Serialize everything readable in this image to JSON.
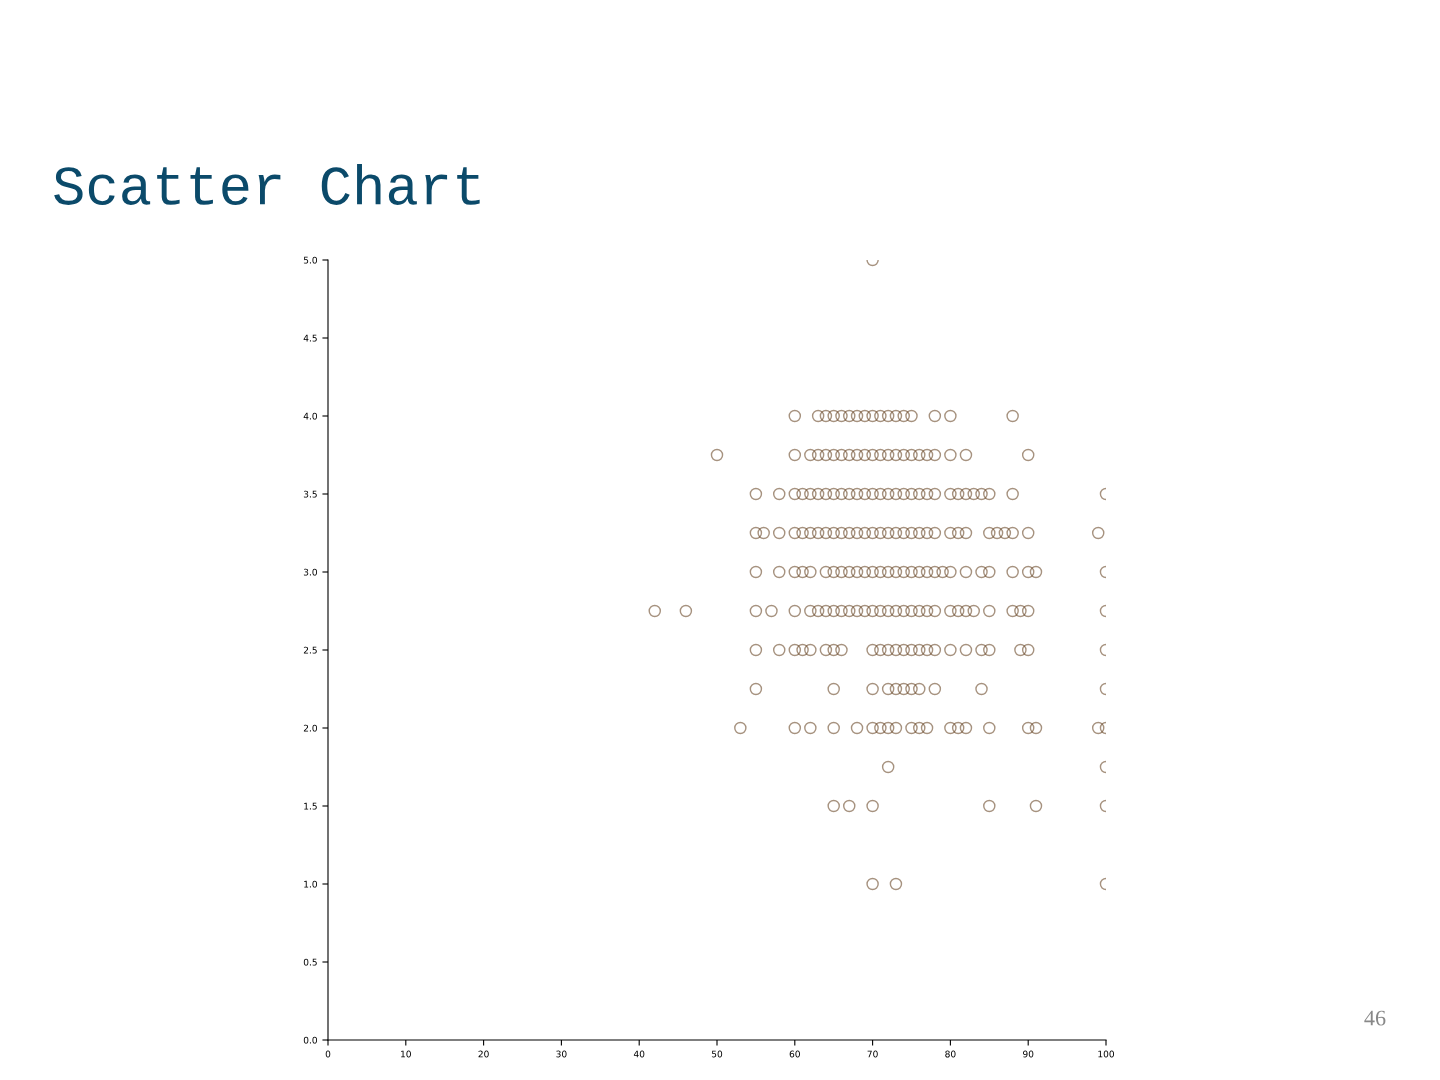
{
  "chart_data": {
    "type": "scatter",
    "title": "Scatter Chart",
    "annotations": [
      "46"
    ],
    "xlim": [
      0,
      100
    ],
    "ylim": [
      0,
      5
    ],
    "xticks": [
      0,
      10,
      20,
      30,
      40,
      50,
      60,
      70,
      80,
      90,
      100
    ],
    "yticks": [
      {
        "value": 0,
        "label": "0.0"
      },
      {
        "value": 0.5,
        "label": "0.5"
      },
      {
        "value": 1,
        "label": "1.0"
      },
      {
        "value": 1.5,
        "label": "1.5"
      },
      {
        "value": 2,
        "label": "2.0"
      },
      {
        "value": 2.5,
        "label": "2.5"
      },
      {
        "value": 3,
        "label": "3.0"
      },
      {
        "value": 3.5,
        "label": "3.5"
      },
      {
        "value": 4,
        "label": "4.0"
      },
      {
        "value": 4.5,
        "label": "4.5"
      },
      {
        "value": 5,
        "label": "5.0"
      }
    ],
    "marker": "circle",
    "series": [
      {
        "color": "#6b4a2a",
        "x": [
          70
        ],
        "values": [
          5
        ]
      },
      {
        "color": "#6b4a2a",
        "x": [
          60,
          63,
          64,
          65,
          66,
          67,
          68,
          69,
          70,
          71,
          72,
          73,
          74,
          75,
          78,
          80,
          88
        ],
        "values": [
          4,
          4,
          4,
          4,
          4,
          4,
          4,
          4,
          4,
          4,
          4,
          4,
          4,
          4,
          4,
          4,
          4
        ]
      },
      {
        "color": "#6b4a2a",
        "x": [
          50,
          60,
          62,
          63,
          64,
          65,
          66,
          67,
          68,
          69,
          70,
          71,
          72,
          73,
          74,
          75,
          76,
          77,
          78,
          80,
          82,
          90
        ],
        "values": [
          3.75,
          3.75,
          3.75,
          3.75,
          3.75,
          3.75,
          3.75,
          3.75,
          3.75,
          3.75,
          3.75,
          3.75,
          3.75,
          3.75,
          3.75,
          3.75,
          3.75,
          3.75,
          3.75,
          3.75,
          3.75,
          3.75
        ]
      },
      {
        "color": "#6b4a2a",
        "x": [
          55,
          58,
          60,
          61,
          62,
          63,
          64,
          65,
          66,
          67,
          68,
          69,
          70,
          71,
          72,
          73,
          74,
          75,
          76,
          77,
          78,
          80,
          81,
          82,
          83,
          84,
          85,
          88,
          100
        ],
        "values": [
          3.5,
          3.5,
          3.5,
          3.5,
          3.5,
          3.5,
          3.5,
          3.5,
          3.5,
          3.5,
          3.5,
          3.5,
          3.5,
          3.5,
          3.5,
          3.5,
          3.5,
          3.5,
          3.5,
          3.5,
          3.5,
          3.5,
          3.5,
          3.5,
          3.5,
          3.5,
          3.5,
          3.5,
          3.5
        ]
      },
      {
        "color": "#6b4a2a",
        "x": [
          55,
          56,
          58,
          60,
          61,
          62,
          63,
          64,
          65,
          66,
          67,
          68,
          69,
          70,
          71,
          72,
          73,
          74,
          75,
          76,
          77,
          78,
          80,
          81,
          82,
          85,
          86,
          87,
          88,
          90,
          99
        ],
        "values": [
          3.25,
          3.25,
          3.25,
          3.25,
          3.25,
          3.25,
          3.25,
          3.25,
          3.25,
          3.25,
          3.25,
          3.25,
          3.25,
          3.25,
          3.25,
          3.25,
          3.25,
          3.25,
          3.25,
          3.25,
          3.25,
          3.25,
          3.25,
          3.25,
          3.25,
          3.25,
          3.25,
          3.25,
          3.25,
          3.25,
          3.25
        ]
      },
      {
        "color": "#6b4a2a",
        "x": [
          55,
          58,
          60,
          61,
          62,
          64,
          65,
          66,
          67,
          68,
          69,
          70,
          71,
          72,
          73,
          74,
          75,
          76,
          77,
          78,
          79,
          80,
          82,
          84,
          85,
          88,
          90,
          91,
          100
        ],
        "values": [
          3,
          3,
          3,
          3,
          3,
          3,
          3,
          3,
          3,
          3,
          3,
          3,
          3,
          3,
          3,
          3,
          3,
          3,
          3,
          3,
          3,
          3,
          3,
          3,
          3,
          3,
          3,
          3,
          3
        ]
      },
      {
        "color": "#6b4a2a",
        "x": [
          42,
          46,
          55,
          57,
          60,
          62,
          63,
          64,
          65,
          66,
          67,
          68,
          69,
          70,
          71,
          72,
          73,
          74,
          75,
          76,
          77,
          78,
          80,
          81,
          82,
          83,
          85,
          88,
          89,
          90,
          100
        ],
        "values": [
          2.75,
          2.75,
          2.75,
          2.75,
          2.75,
          2.75,
          2.75,
          2.75,
          2.75,
          2.75,
          2.75,
          2.75,
          2.75,
          2.75,
          2.75,
          2.75,
          2.75,
          2.75,
          2.75,
          2.75,
          2.75,
          2.75,
          2.75,
          2.75,
          2.75,
          2.75,
          2.75,
          2.75,
          2.75,
          2.75,
          2.75
        ]
      },
      {
        "color": "#6b4a2a",
        "x": [
          55,
          58,
          60,
          61,
          62,
          64,
          65,
          66,
          70,
          71,
          72,
          73,
          74,
          75,
          76,
          77,
          78,
          80,
          82,
          84,
          85,
          89,
          90,
          100
        ],
        "values": [
          2.5,
          2.5,
          2.5,
          2.5,
          2.5,
          2.5,
          2.5,
          2.5,
          2.5,
          2.5,
          2.5,
          2.5,
          2.5,
          2.5,
          2.5,
          2.5,
          2.5,
          2.5,
          2.5,
          2.5,
          2.5,
          2.5,
          2.5,
          2.5
        ]
      },
      {
        "color": "#6b4a2a",
        "x": [
          55,
          65,
          70,
          72,
          73,
          74,
          75,
          76,
          78,
          84,
          100
        ],
        "values": [
          2.25,
          2.25,
          2.25,
          2.25,
          2.25,
          2.25,
          2.25,
          2.25,
          2.25,
          2.25,
          2.25
        ]
      },
      {
        "color": "#6b4a2a",
        "x": [
          53,
          60,
          62,
          65,
          68,
          70,
          71,
          72,
          73,
          75,
          76,
          77,
          80,
          81,
          82,
          85,
          90,
          91,
          99,
          100
        ],
        "values": [
          2,
          2,
          2,
          2,
          2,
          2,
          2,
          2,
          2,
          2,
          2,
          2,
          2,
          2,
          2,
          2,
          2,
          2,
          2,
          2
        ]
      },
      {
        "color": "#6b4a2a",
        "x": [
          72,
          100
        ],
        "values": [
          1.75,
          1.75
        ]
      },
      {
        "color": "#6b4a2a",
        "x": [
          65,
          67,
          70,
          85,
          91,
          100
        ],
        "values": [
          1.5,
          1.5,
          1.5,
          1.5,
          1.5,
          1.5
        ]
      },
      {
        "color": "#6b4a2a",
        "x": [
          70,
          73,
          100
        ],
        "values": [
          1,
          1,
          1
        ]
      }
    ]
  }
}
